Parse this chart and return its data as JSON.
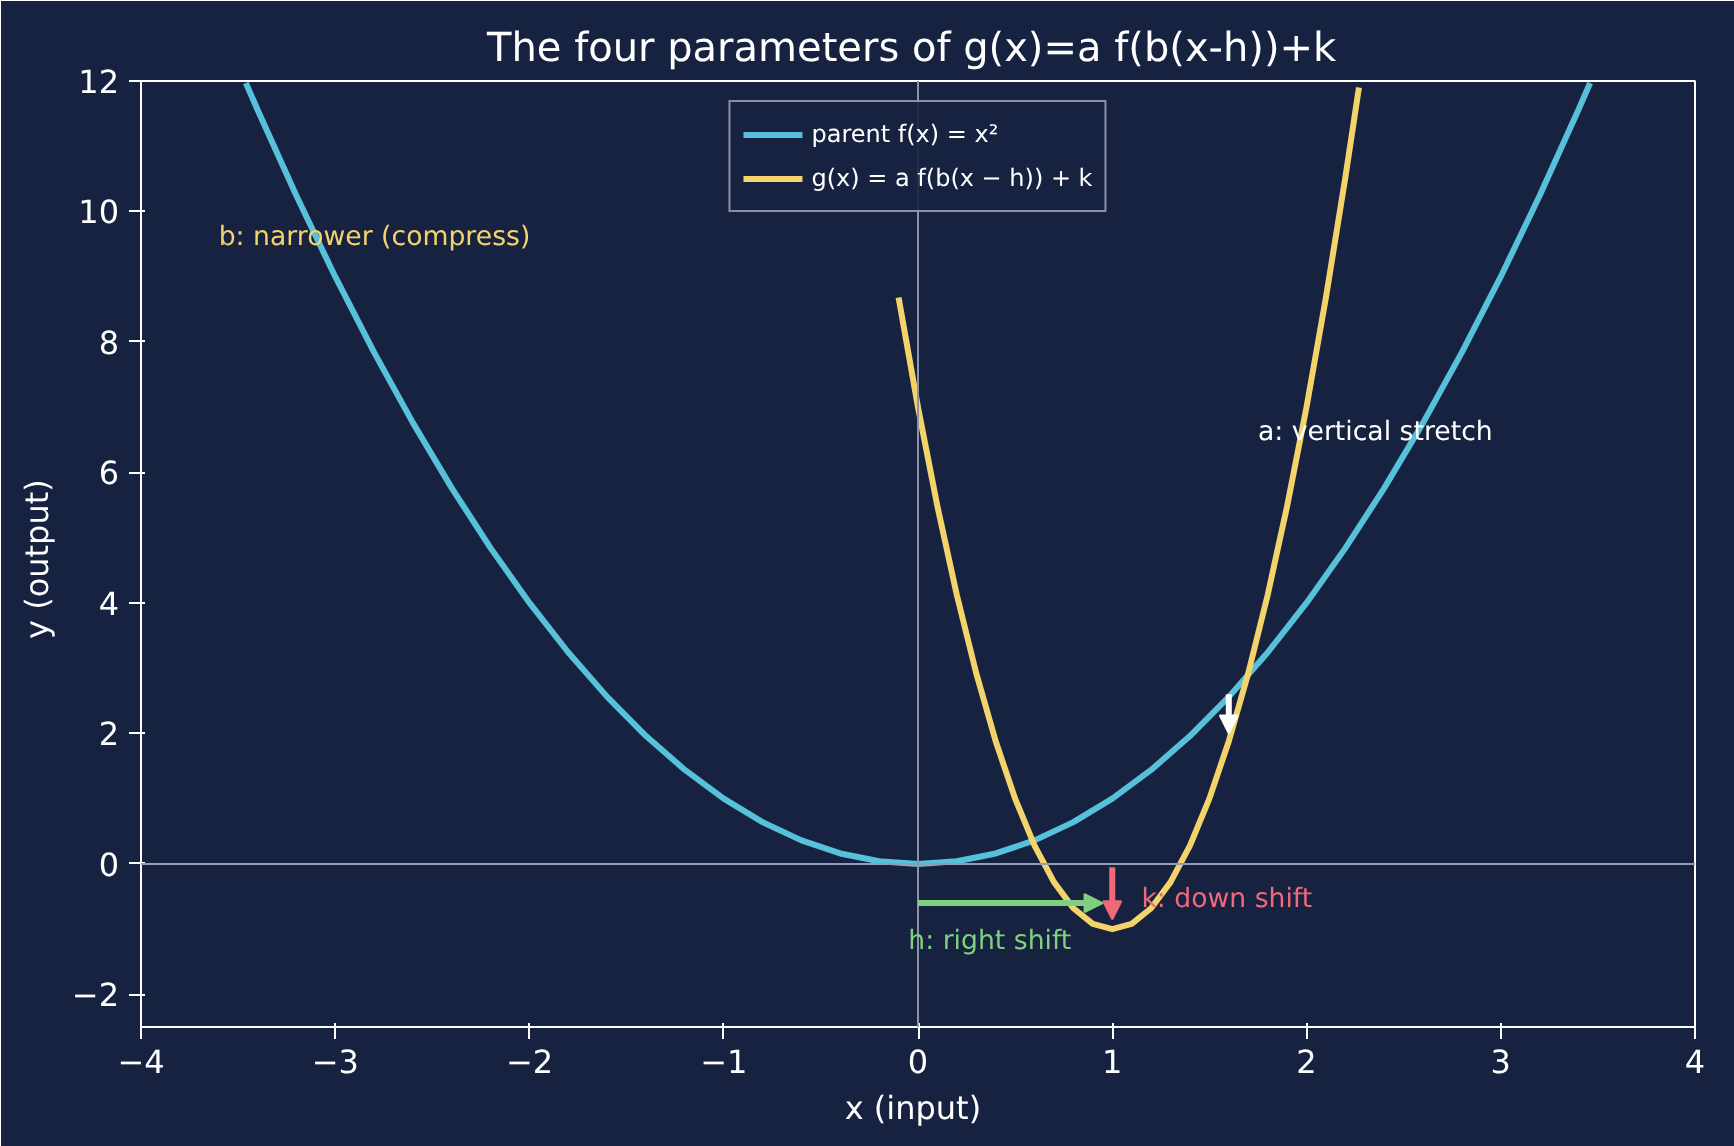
{
  "chart_data": {
    "type": "line",
    "title": "The four parameters of  g(x)=a f(b(x-h))+k",
    "xlabel": "x  (input)",
    "ylabel": "y  (output)",
    "series": [
      {
        "name": "parent f(x) = x²",
        "color": "#56c1d9",
        "x": [
          -3.46,
          -3.4,
          -3.2,
          -3.0,
          -2.8,
          -2.6,
          -2.4,
          -2.2,
          -2.0,
          -1.8,
          -1.6,
          -1.4,
          -1.2,
          -1.0,
          -0.8,
          -0.6,
          -0.4,
          -0.2,
          0,
          0.2,
          0.4,
          0.6,
          0.8,
          1.0,
          1.2,
          1.4,
          1.6,
          1.8,
          2.0,
          2.2,
          2.4,
          2.6,
          2.8,
          3.0,
          3.2,
          3.4,
          3.46
        ],
        "values": [
          11.97,
          11.56,
          10.24,
          9,
          7.84,
          6.76,
          5.76,
          4.84,
          4,
          3.24,
          2.56,
          1.96,
          1.44,
          1,
          0.64,
          0.36,
          0.16,
          0.04,
          0,
          0.04,
          0.16,
          0.36,
          0.64,
          1,
          1.44,
          1.96,
          2.56,
          3.24,
          4,
          4.84,
          5.76,
          6.76,
          7.84,
          9,
          10.24,
          11.56,
          11.97
        ]
      },
      {
        "name": "g(x) = a f(b(x − h)) + k",
        "color": "#f2d46b",
        "x": [
          -0.1,
          0,
          0.1,
          0.2,
          0.3,
          0.4,
          0.5,
          0.6,
          0.7,
          0.8,
          0.9,
          1.0,
          1.1,
          1.2,
          1.3,
          1.4,
          1.5,
          1.6,
          1.7,
          1.8,
          1.9,
          2.0,
          2.1,
          2.2,
          2.27
        ],
        "values": [
          8.68,
          7,
          5.48,
          4.12,
          2.92,
          1.88,
          1,
          0.28,
          -0.28,
          -0.68,
          -0.92,
          -1,
          -0.92,
          -0.68,
          -0.28,
          0.28,
          1,
          1.88,
          2.92,
          4.12,
          5.48,
          7,
          8.68,
          10.52,
          11.9
        ]
      }
    ],
    "annotations": [
      "b: narrower (compress)",
      "a: vertical stretch",
      {
        "text": "h: right shift",
        "x": -0.05,
        "y": -1.2
      },
      {
        "text": "k: down shift",
        "x": 1.15,
        "y": -0.55
      }
    ],
    "ref_lines": [
      {
        "axis": "x",
        "value": 0
      },
      {
        "axis": "y",
        "value": 0
      }
    ],
    "xlim": [
      -4,
      4
    ],
    "ylim": [
      -2.5,
      12
    ],
    "xticks": [
      {
        "value": -4,
        "label": "−4"
      },
      {
        "value": -3,
        "label": "−3"
      },
      {
        "value": -2,
        "label": "−2"
      },
      {
        "value": -1,
        "label": "−1"
      },
      0,
      1,
      2,
      3,
      4
    ],
    "yticks": [
      {
        "value": -2,
        "label": "−2"
      },
      0,
      2,
      4,
      6,
      8,
      10,
      12
    ],
    "grid": false,
    "legend": "top",
    "line_style": "solid",
    "marker": "none"
  }
}
